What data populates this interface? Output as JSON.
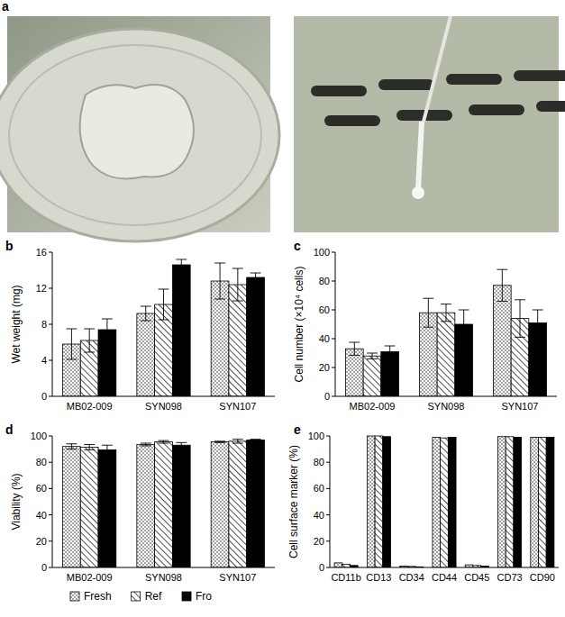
{
  "panel_a": {
    "label": "a"
  },
  "chart_data": [
    {
      "type": "bar",
      "panel_label": "b",
      "y_label": "Wet weight (mg)",
      "categories": [
        "MB02-009",
        "SYN098",
        "SYN107"
      ],
      "ylim": [
        0,
        16
      ],
      "yticks": [
        0,
        4,
        8,
        12,
        16
      ],
      "series": [
        {
          "name": "Fresh",
          "color": "#ffffff",
          "values": [
            5.8,
            9.2,
            12.8
          ],
          "errors": [
            1.7,
            0.8,
            2.0
          ]
        },
        {
          "name": "Ref",
          "color": "#ffffff",
          "values": [
            6.2,
            10.2,
            12.4
          ],
          "errors": [
            1.3,
            1.7,
            1.8
          ]
        },
        {
          "name": "Fro",
          "color": "#000000",
          "values": [
            7.4,
            14.6,
            13.2
          ],
          "errors": [
            1.2,
            0.6,
            0.5
          ]
        }
      ]
    },
    {
      "type": "bar",
      "panel_label": "c",
      "y_label": "Cell number (×10⁴ cells)",
      "categories": [
        "MB02-009",
        "SYN098",
        "SYN107"
      ],
      "ylim": [
        0,
        100
      ],
      "yticks": [
        0,
        20,
        40,
        60,
        80,
        100
      ],
      "series": [
        {
          "name": "Fresh",
          "color": "#ffffff",
          "values": [
            33,
            58,
            77
          ],
          "errors": [
            4.5,
            10,
            11
          ]
        },
        {
          "name": "Ref",
          "color": "#ffffff",
          "values": [
            28,
            58,
            54
          ],
          "errors": [
            2,
            6,
            13
          ]
        },
        {
          "name": "Fro",
          "color": "#000000",
          "values": [
            31,
            50,
            51
          ],
          "errors": [
            4,
            10,
            9
          ]
        }
      ]
    },
    {
      "type": "bar",
      "panel_label": "d",
      "y_label": "Viability (%)",
      "categories": [
        "MB02-009",
        "SYN098",
        "SYN107"
      ],
      "ylim": [
        0,
        100
      ],
      "yticks": [
        0,
        20,
        40,
        60,
        80,
        100
      ],
      "legend": "bottom",
      "series": [
        {
          "name": "Fresh",
          "color": "#ffffff",
          "values": [
            92,
            93.5,
            95.5
          ],
          "errors": [
            2,
            1,
            0.5
          ]
        },
        {
          "name": "Ref",
          "color": "#ffffff",
          "values": [
            91.5,
            95.5,
            96
          ],
          "errors": [
            2,
            1,
            1.5
          ]
        },
        {
          "name": "Fro",
          "color": "#000000",
          "values": [
            89.5,
            93,
            97
          ],
          "errors": [
            3.5,
            2,
            0.5
          ]
        }
      ]
    },
    {
      "type": "bar",
      "panel_label": "e",
      "y_label": "Cell surface marker (%)",
      "categories": [
        "CD11b",
        "CD13",
        "CD34",
        "CD44",
        "CD45",
        "CD73",
        "CD90"
      ],
      "ylim": [
        0,
        100
      ],
      "yticks": [
        0,
        20,
        40,
        60,
        80,
        100
      ],
      "series": [
        {
          "name": "Fresh",
          "color": "#ffffff",
          "values": [
            3.5,
            100,
            1,
            99,
            2,
            99.5,
            99
          ]
        },
        {
          "name": "Ref",
          "color": "#ffffff",
          "values": [
            2.5,
            100,
            0.8,
            98.5,
            1.5,
            99.5,
            99
          ]
        },
        {
          "name": "Fro",
          "color": "#000000",
          "values": [
            1.5,
            99.5,
            0.5,
            99,
            1,
            99,
            99
          ]
        }
      ]
    }
  ]
}
